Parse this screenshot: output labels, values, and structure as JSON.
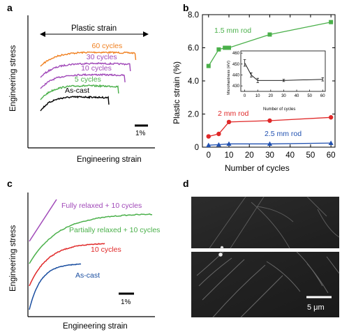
{
  "panel_labels": {
    "a": "a",
    "b": "b",
    "c": "c",
    "d": "d"
  },
  "colors": {
    "orange": "#f08020",
    "purple": "#a048b8",
    "green": "#4ab04a",
    "red": "#e02828",
    "black": "#000000",
    "blue": "#2050b0",
    "dark_blue": "#1a4ea0"
  },
  "chart_data": [
    {
      "panel": "a",
      "type": "line",
      "xlabel": "Engineering strain",
      "ylabel": "Engineering stress",
      "annotation": "Plastic strain",
      "scale_bar": "1%",
      "series": [
        {
          "name": "60 cycles",
          "color": "#f08020",
          "offset": 0,
          "end_x": 0.88
        },
        {
          "name": "30 cycles",
          "color": "#a048b8",
          "offset": 1,
          "end_x": 0.83
        },
        {
          "name": "10 cycles",
          "color": "#a048b8",
          "offset": 2,
          "end_x": 0.78
        },
        {
          "name": "5 cycles",
          "color": "#4ab04a",
          "offset": 3,
          "end_x": 0.72
        },
        {
          "name": "As-cast",
          "color": "#000000",
          "offset": 4,
          "end_x": 0.63
        }
      ]
    },
    {
      "panel": "b",
      "type": "line",
      "xlabel": "Number of cycles",
      "ylabel": "Plastic strain (%)",
      "xlim": [
        -3,
        62
      ],
      "ylim": [
        0,
        8.0
      ],
      "x_ticks": [
        0,
        10,
        20,
        30,
        40,
        50,
        60
      ],
      "y_ticks": [
        "0",
        "2.0",
        "4.0",
        "6.0",
        "8.0"
      ],
      "series": [
        {
          "name": "1.5 mm rod",
          "color": "#4ab04a",
          "marker": "square",
          "x": [
            0,
            5,
            8,
            10,
            30,
            60
          ],
          "y": [
            4.9,
            5.9,
            6.0,
            6.0,
            6.8,
            7.55
          ]
        },
        {
          "name": "2 mm rod",
          "color": "#e02828",
          "marker": "circle",
          "x": [
            0,
            5,
            10,
            30,
            60
          ],
          "y": [
            0.65,
            0.8,
            1.52,
            1.6,
            1.8
          ]
        },
        {
          "name": "2.5 mm rod",
          "color": "#2050b0",
          "marker": "triangle",
          "x": [
            0,
            5,
            10,
            30,
            60
          ],
          "y": [
            0.12,
            0.15,
            0.2,
            0.2,
            0.25
          ]
        }
      ],
      "inset": {
        "type": "line",
        "xlabel": "Number of cycles",
        "ylabel": "Microhardness (HV)",
        "xlim": [
          -3,
          62
        ],
        "ylim": [
          425,
          462
        ],
        "x_ticks": [
          0,
          10,
          20,
          30,
          40,
          50,
          60
        ],
        "y_ticks": [
          430,
          440,
          450,
          460
        ],
        "series": [
          {
            "name": "Microhardness",
            "color": "#000000",
            "x": [
              0,
              5,
              10,
              30,
              60
            ],
            "y": [
              451,
              440,
              435,
              435,
              436
            ],
            "err": [
              3,
              2,
              2,
              1,
              1.5
            ]
          }
        ]
      }
    },
    {
      "panel": "c",
      "type": "line",
      "xlabel": "Engineering strain",
      "ylabel": "Engineering stress",
      "scale_bar": "1%",
      "series": [
        {
          "name": "Fully relaxed + 10 cycles",
          "color": "#a048b8"
        },
        {
          "name": "Partially relaxed + 10 cycles",
          "color": "#4ab04a"
        },
        {
          "name": "10 cycles",
          "color": "#e02828"
        },
        {
          "name": "As-cast",
          "color": "#1a4ea0"
        }
      ]
    }
  ],
  "panel_d": {
    "scale_bar": "5 μm"
  }
}
